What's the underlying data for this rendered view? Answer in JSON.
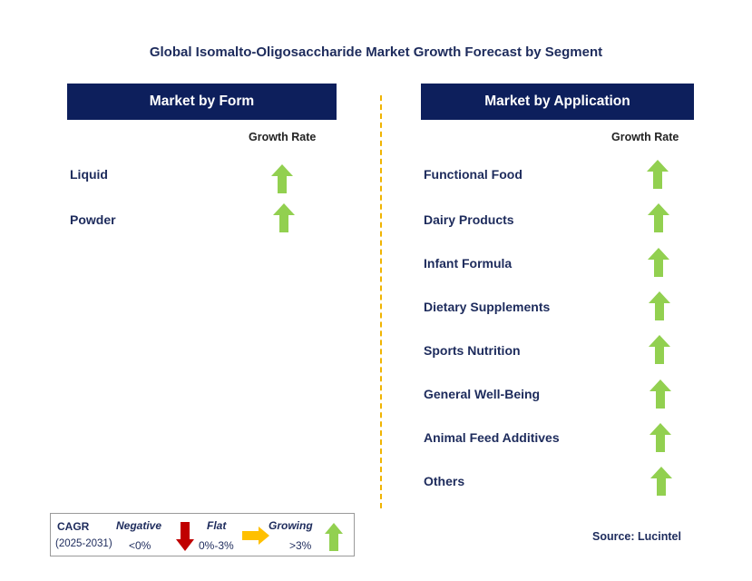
{
  "title": "Global Isomalto-Oligosaccharide Market Growth Forecast by Segment",
  "left_panel": {
    "header": "Market by Form",
    "growth_rate_label": "Growth Rate",
    "items": [
      {
        "label": "Liquid",
        "trend": "growing"
      },
      {
        "label": "Powder",
        "trend": "growing"
      }
    ]
  },
  "right_panel": {
    "header": "Market by Application",
    "growth_rate_label": "Growth Rate",
    "items": [
      {
        "label": "Functional Food",
        "trend": "growing"
      },
      {
        "label": "Dairy Products",
        "trend": "growing"
      },
      {
        "label": "Infant Formula",
        "trend": "growing"
      },
      {
        "label": "Dietary Supplements",
        "trend": "growing"
      },
      {
        "label": "Sports Nutrition",
        "trend": "growing"
      },
      {
        "label": "General Well-Being",
        "trend": "growing"
      },
      {
        "label": "Animal Feed Additives",
        "trend": "growing"
      },
      {
        "label": "Others",
        "trend": "growing"
      }
    ]
  },
  "legend": {
    "cagr": "CAGR",
    "period": "(2025-2031)",
    "negative": {
      "label": "Negative",
      "range": "<0%",
      "icon": "down-arrow-icon",
      "color": "#c00000"
    },
    "flat": {
      "label": "Flat",
      "range": "0%-3%",
      "icon": "right-arrow-icon",
      "color": "#ffc000"
    },
    "growing": {
      "label": "Growing",
      "range": ">3%",
      "icon": "up-arrow-icon",
      "color": "#92d050"
    }
  },
  "source": "Source: Lucintel",
  "colors": {
    "header_bg": "#0d1f5c",
    "divider": "#f0b400",
    "up_arrow": "#92d050"
  }
}
